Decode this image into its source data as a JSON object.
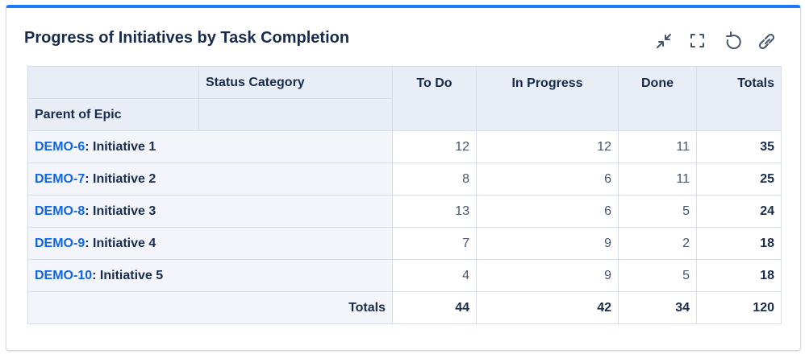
{
  "header": {
    "title": "Progress of Initiatives by Task Completion"
  },
  "table": {
    "row_header_label": "Status Category",
    "column_header_label": "Parent of Epic",
    "columns": [
      "To Do",
      "In Progress",
      "Done",
      "Totals"
    ],
    "rows": [
      {
        "key": "DEMO-6",
        "name": ": Initiative 1",
        "values": [
          12,
          12,
          11
        ],
        "total": 35
      },
      {
        "key": "DEMO-7",
        "name": ": Initiative 2",
        "values": [
          8,
          6,
          11
        ],
        "total": 25
      },
      {
        "key": "DEMO-8",
        "name": ": Initiative 3",
        "values": [
          13,
          6,
          5
        ],
        "total": 24
      },
      {
        "key": "DEMO-9",
        "name": ": Initiative 4",
        "values": [
          7,
          9,
          2
        ],
        "total": 18
      },
      {
        "key": "DEMO-10",
        "name": ": Initiative 5",
        "values": [
          4,
          9,
          5
        ],
        "total": 18
      }
    ],
    "totals": {
      "label": "Totals",
      "values": [
        44,
        42,
        34
      ],
      "total": 120
    }
  }
}
